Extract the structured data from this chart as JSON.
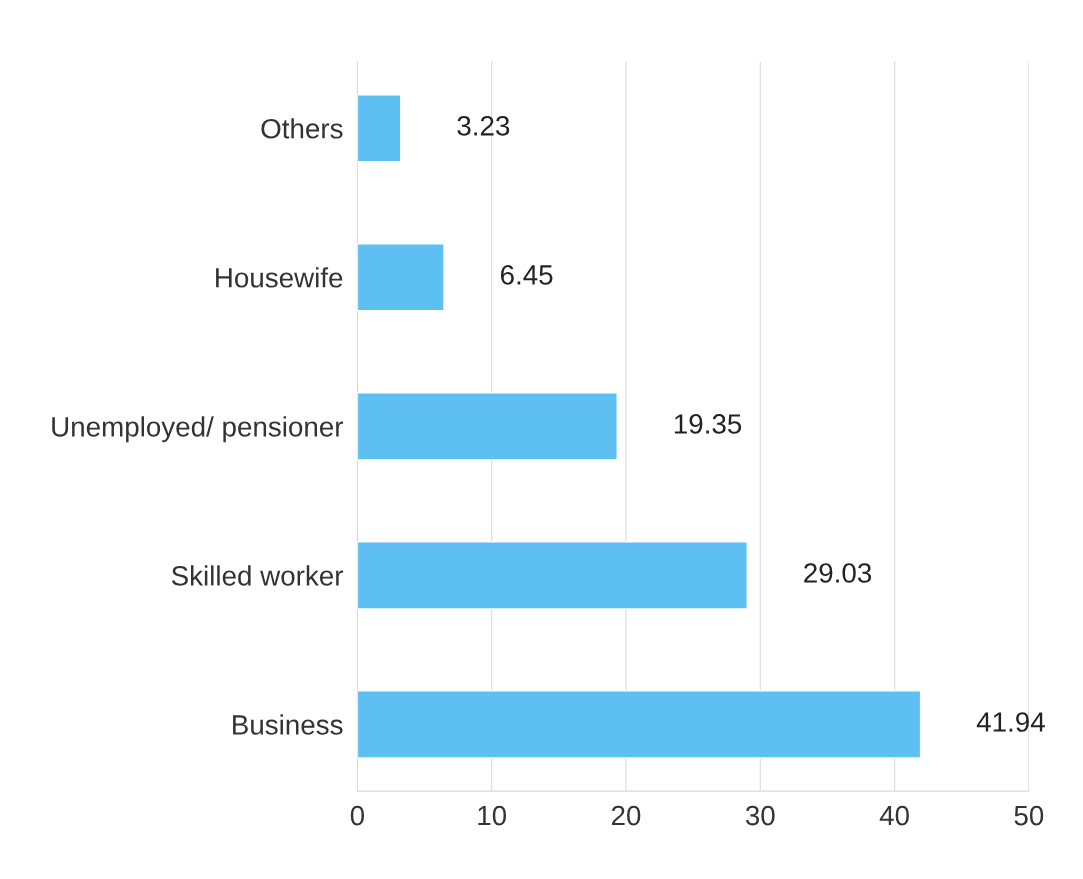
{
  "chart_data": {
    "type": "bar",
    "orientation": "horizontal",
    "categories": [
      "Others",
      "Housewife",
      "Unemployed/ pensioner",
      "Skilled worker",
      "Business"
    ],
    "values": [
      3.23,
      6.45,
      19.35,
      29.03,
      41.94
    ],
    "color": "#5ec0f2",
    "xlim": [
      0,
      50
    ],
    "xticks": [
      0,
      10,
      20,
      30,
      40,
      50
    ],
    "grid": "x",
    "data_labels": true
  }
}
